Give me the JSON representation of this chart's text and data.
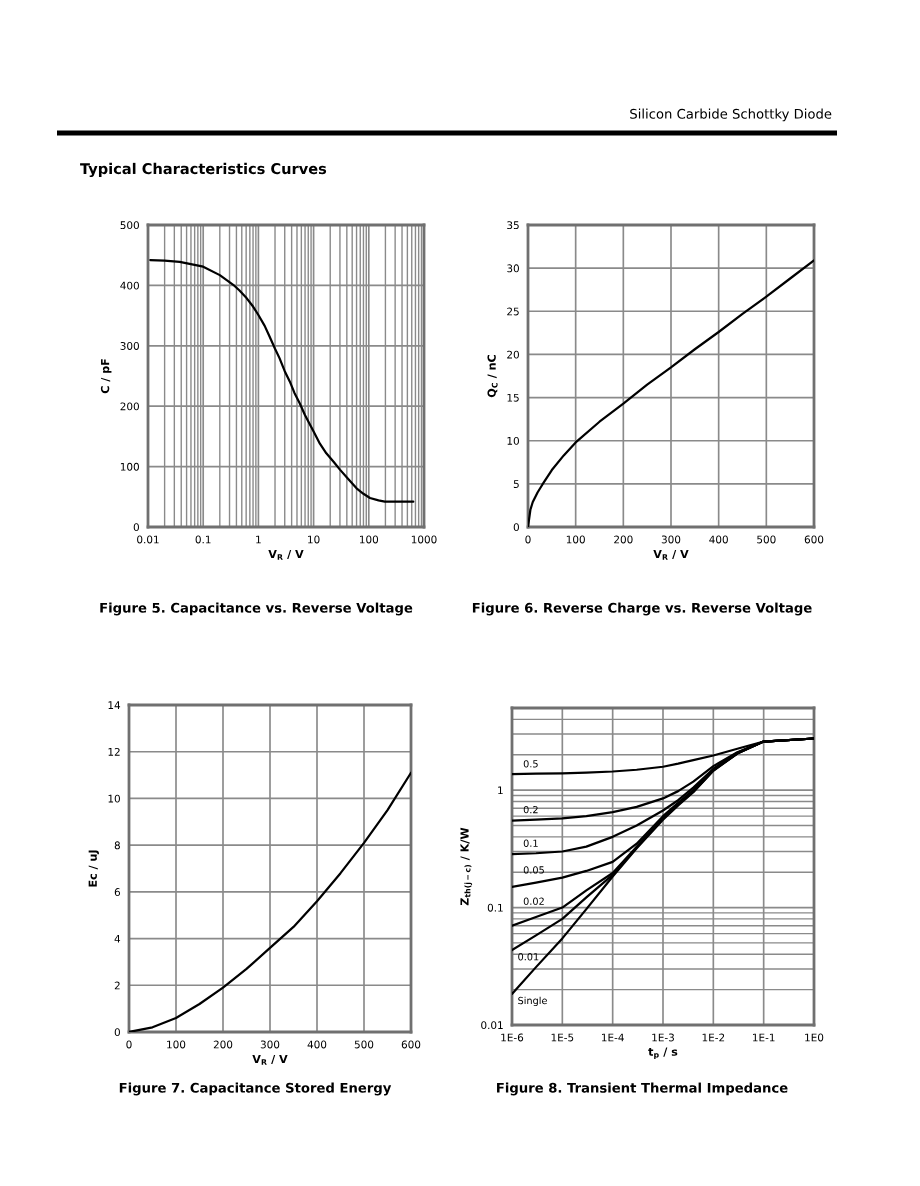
{
  "chart_data": [
    {
      "type": "other",
      "annotations": [
        "Silicon Carbide Schottky Diode",
        "Typical Characteristics Curves"
      ]
    },
    {
      "type": "line",
      "title": "Figure 5. Capacitance vs. Reverse Voltage",
      "xlabel": "V$_{R}$ / V",
      "ylabel": "C / pF",
      "log": "x",
      "x": [
        0.011,
        0.02,
        0.0375,
        0.1,
        0.2,
        0.35,
        0.45,
        0.61,
        0.8,
        1,
        1.3,
        1.6,
        2,
        2.4,
        3,
        3.7,
        4.5,
        5.6,
        7,
        10,
        13,
        17,
        23,
        30,
        42,
        60,
        80,
        105,
        150,
        195,
        640
      ],
      "series": [
        {
          "color": "#000000",
          "values": [
            442,
            441,
            439,
            431,
            417,
            401,
            392,
            379,
            365,
            351,
            333,
            315,
            295,
            280,
            258,
            241,
            222,
            205,
            185,
            158,
            138,
            122,
            108,
            95,
            80,
            64,
            55,
            48,
            44,
            42,
            42
          ]
        }
      ],
      "xlim": [
        0.01,
        1000
      ],
      "xticks": [
        0.01,
        0.1,
        1,
        10,
        100,
        1000
      ],
      "ylim": [
        0,
        500
      ],
      "yticks": [
        0,
        100,
        200,
        300,
        400,
        500
      ],
      "grid": true,
      "line_style": "solid"
    },
    {
      "type": "line",
      "title": "Figure 6. Reverse Charge vs. Reverse Voltage",
      "xlabel": "V$_{R}$ / V",
      "ylabel": "Q$_{C}$ / nC",
      "x": [
        0,
        5,
        10,
        20,
        30,
        50,
        75,
        100,
        150,
        200,
        250,
        300,
        350,
        400,
        450,
        500,
        550,
        600
      ],
      "series": [
        {
          "color": "#000000",
          "values": [
            0,
            2.0,
            2.9,
            4.0,
            4.9,
            6.6,
            8.3,
            9.8,
            12.2,
            14.3,
            16.5,
            18.5,
            20.6,
            22.6,
            24.7,
            26.7,
            28.8,
            30.9
          ]
        }
      ],
      "xlim": [
        0,
        600
      ],
      "xticks": [
        0,
        100,
        200,
        300,
        400,
        500,
        600
      ],
      "ylim": [
        0,
        35
      ],
      "yticks": [
        0,
        5,
        10,
        15,
        20,
        25,
        30,
        35
      ],
      "grid": true,
      "line_style": "solid"
    },
    {
      "type": "line",
      "title": "Figure 7. Capacitance Stored Energy",
      "xlabel": "V$_{R}$ / V",
      "ylabel": "Ec / uJ",
      "x": [
        0,
        50,
        100,
        150,
        200,
        250,
        300,
        350,
        400,
        450,
        500,
        550,
        600
      ],
      "series": [
        {
          "color": "#000000",
          "values": [
            0,
            0.2,
            0.6,
            1.2,
            1.9,
            2.7,
            3.6,
            4.5,
            5.6,
            6.8,
            8.1,
            9.5,
            11.1
          ]
        }
      ],
      "xlim": [
        0,
        600
      ],
      "xticks": [
        0,
        100,
        200,
        300,
        400,
        500,
        600
      ],
      "ylim": [
        0,
        14
      ],
      "yticks": [
        0,
        2,
        4,
        6,
        8,
        10,
        12,
        14
      ],
      "grid": true,
      "line_style": "solid"
    },
    {
      "type": "line",
      "title": "Figure 8. Transient Thermal Impedance",
      "xlabel": "t$_{p}$ / s",
      "ylabel": "Z$_{th(j−c)}$ / K/W",
      "log": "xy",
      "x": [
        1e-06,
        3e-06,
        1e-05,
        3e-05,
        0.0001,
        0.0003,
        0.001,
        0.002,
        0.004,
        0.01,
        0.03,
        0.1,
        1
      ],
      "series": [
        {
          "name": "0.5",
          "color": "#000000",
          "values": [
            1.37,
            1.38,
            1.39,
            1.41,
            1.44,
            1.49,
            1.58,
            1.68,
            1.8,
            1.97,
            2.25,
            2.59,
            2.75
          ]
        },
        {
          "name": "0.2",
          "color": "#000000",
          "values": [
            0.55,
            0.56,
            0.575,
            0.6,
            0.65,
            0.72,
            0.85,
            0.98,
            1.18,
            1.6,
            2.1,
            2.59,
            2.75
          ]
        },
        {
          "name": "0.1",
          "color": "#000000",
          "values": [
            0.285,
            0.29,
            0.3,
            0.33,
            0.4,
            0.5,
            0.67,
            0.82,
            1.05,
            1.52,
            2.08,
            2.59,
            2.75
          ]
        },
        {
          "name": "0.05",
          "color": "#000000",
          "values": [
            0.15,
            0.163,
            0.18,
            0.205,
            0.245,
            0.35,
            0.6,
            0.78,
            1.0,
            1.5,
            2.07,
            2.59,
            2.75
          ]
        },
        {
          "name": "0.02",
          "color": "#000000",
          "values": [
            0.07,
            0.083,
            0.1,
            0.14,
            0.197,
            0.33,
            0.58,
            0.76,
            0.98,
            1.48,
            2.06,
            2.59,
            2.75
          ]
        },
        {
          "name": "0.01",
          "color": "#000000",
          "values": [
            0.0434,
            0.058,
            0.08,
            0.122,
            0.19,
            0.325,
            0.57,
            0.75,
            0.97,
            1.47,
            2.05,
            2.59,
            2.75
          ]
        },
        {
          "name": "Single",
          "color": "#000000",
          "values": [
            0.0184,
            0.0311,
            0.0546,
            0.097,
            0.184,
            0.32,
            0.56,
            0.74,
            0.96,
            1.46,
            2.05,
            2.59,
            2.75
          ]
        }
      ],
      "xlim": [
        1e-06,
        1
      ],
      "xticks": [
        {
          "value": 1e-06,
          "label": "1E-6"
        },
        {
          "value": 1e-05,
          "label": "1E-5"
        },
        {
          "value": 0.0001,
          "label": "1E-4"
        },
        {
          "value": 0.001,
          "label": "1E-3"
        },
        {
          "value": 0.01,
          "label": "1E-2"
        },
        {
          "value": 0.1,
          "label": "1E-1"
        },
        {
          "value": 1,
          "label": "1E0"
        }
      ],
      "ylim": [
        0.01,
        5
      ],
      "yticks": [
        0.01,
        0.1,
        1
      ],
      "grid": true,
      "line_style": "solid"
    }
  ]
}
